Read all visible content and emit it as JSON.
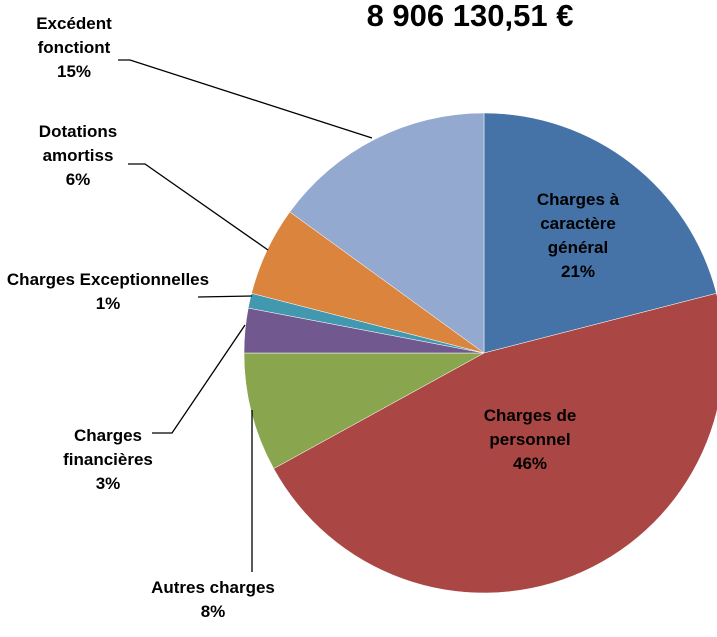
{
  "chart_data": {
    "type": "pie",
    "title": "8 906 130,51 €",
    "categories": [
      "Charges à caractère général",
      "Charges de personnel",
      "Autres charges",
      "Charges financières",
      "Charges Exceptionnelles",
      "Dotations amortiss",
      "Excédent fonctiont"
    ],
    "values": [
      21,
      46,
      8,
      3,
      1,
      6,
      15
    ],
    "value_labels": [
      "21%",
      "46%",
      "8%",
      "3%",
      "1%",
      "6%",
      "15%"
    ],
    "colors": [
      "#4572a7",
      "#aa4643",
      "#89a54e",
      "#71588f",
      "#4198af",
      "#db843d",
      "#93a9cf"
    ]
  }
}
